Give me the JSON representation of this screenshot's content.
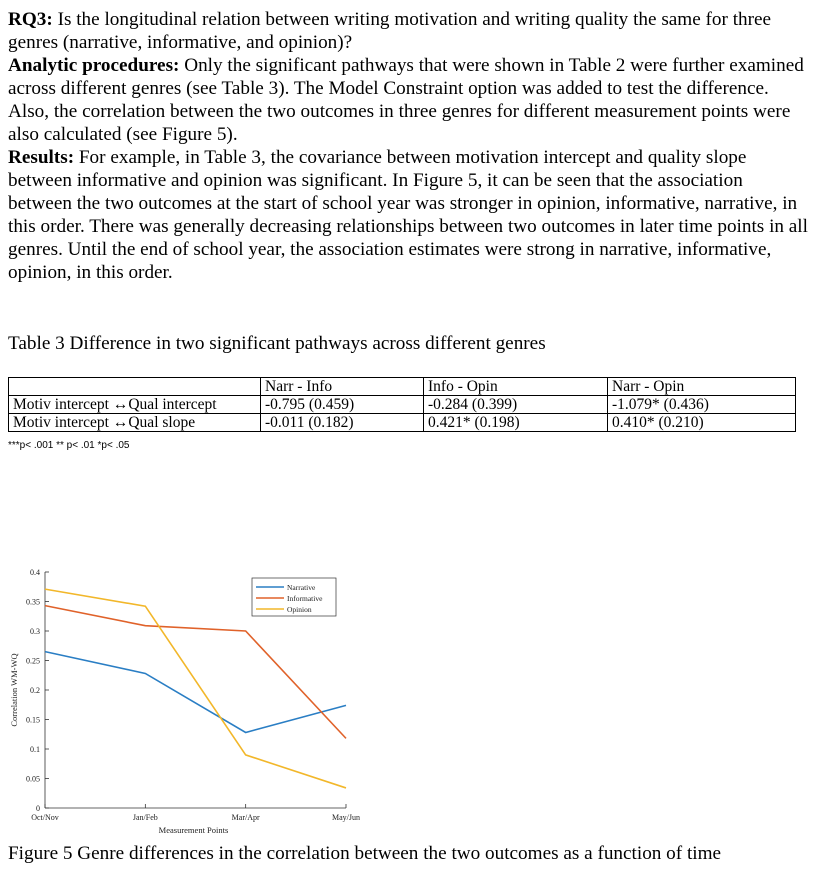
{
  "rq3": {
    "label": "RQ3:",
    "text": " Is the longitudinal relation between writing motivation and writing quality the same for three genres (narrative, informative, and opinion)?"
  },
  "analytic": {
    "label": "Analytic procedures:",
    "text": " Only the significant pathways that were shown in Table 2 were further examined across different genres (see Table 3). The Model Constraint option was added to test the difference. Also, the correlation between the two outcomes in three genres for different measurement points were also calculated (see Figure 5)."
  },
  "results": {
    "label": "Results:",
    "text": " For example, in Table 3, the covariance between motivation intercept and quality slope between informative and opinion was significant. In Figure 5, it can be seen that the association between the two outcomes at the start of school year was stronger in opinion, informative, narrative, in this order. There was generally decreasing relationships between two outcomes in later time points in all genres. Until the end of school year, the association estimates were strong in narrative, informative, opinion, in this order."
  },
  "table3": {
    "caption": "Table 3 Difference in two significant pathways across different genres",
    "headers": [
      "",
      "Narr - Info",
      "Info - Opin",
      "Narr - Opin"
    ],
    "rows": [
      [
        "Motiv intercept ↔Qual intercept",
        "-0.795 (0.459)",
        "-0.284 (0.399)",
        "-1.079* (0.436)"
      ],
      [
        "Motiv intercept ↔Qual slope",
        "-0.011 (0.182)",
        "0.421* (0.198)",
        "0.410* (0.210)"
      ]
    ],
    "note": "***p< .001  ** p< .01  *p< .05"
  },
  "figure5": {
    "caption": "Figure 5 Genre differences in the correlation between the two outcomes as a function of time"
  },
  "chart_data": {
    "type": "line",
    "categories": [
      "Oct/Nov",
      "Jan/Feb",
      "Mar/Apr",
      "May/Jun"
    ],
    "xlabel": "Measurement Points",
    "ylabel": "Correlation WM-WQ",
    "ylim": [
      0,
      0.4
    ],
    "yticks": [
      0,
      0.05,
      0.1,
      0.15,
      0.2,
      0.25,
      0.3,
      0.35,
      0.4
    ],
    "ytick_labels": [
      "0",
      "0.05",
      "0.1",
      "0.15",
      "0.2",
      "0.25",
      "0.3",
      "0.35",
      "0.4"
    ],
    "legend_position": "top-right",
    "grid": false,
    "series": [
      {
        "name": "Narrative",
        "color": "#2a7ec4",
        "values": [
          0.265,
          0.228,
          0.128,
          0.174
        ]
      },
      {
        "name": "Informative",
        "color": "#e0622a",
        "values": [
          0.343,
          0.309,
          0.3,
          0.118
        ]
      },
      {
        "name": "Opinion",
        "color": "#f2b72a",
        "values": [
          0.371,
          0.342,
          0.09,
          0.034
        ]
      }
    ]
  }
}
